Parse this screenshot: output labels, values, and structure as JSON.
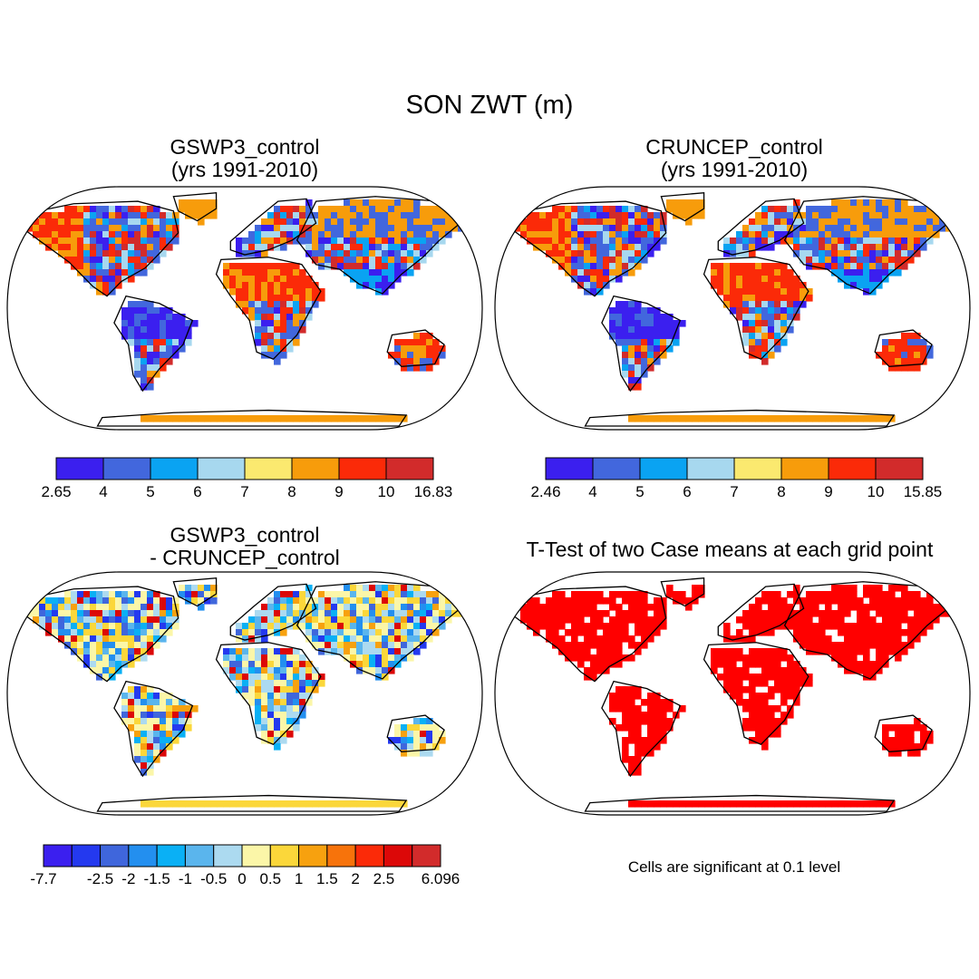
{
  "figure": {
    "title": "SON ZWT (m)"
  },
  "panels": [
    {
      "title": "GSWP3_control\n(yrs 1991-2010)",
      "colorbar": {
        "labels": [
          "2.65",
          "4",
          "5",
          "6",
          "7",
          "8",
          "9",
          "10",
          "16.83"
        ],
        "colors": [
          "#3b1fef",
          "#4267dd",
          "#0aa3f2",
          "#a7d8ef",
          "#fbe96f",
          "#f79c0b",
          "#fb2a08",
          "#d22b2b"
        ]
      }
    },
    {
      "title": "CRUNCEP_control\n(yrs 1991-2010)",
      "colorbar": {
        "labels": [
          "2.46",
          "4",
          "5",
          "6",
          "7",
          "8",
          "9",
          "10",
          "15.85"
        ],
        "colors": [
          "#3b1fef",
          "#4267dd",
          "#0aa3f2",
          "#a7d8ef",
          "#fbe96f",
          "#f79c0b",
          "#fb2a08",
          "#d22b2b"
        ]
      }
    },
    {
      "title": "GSWP3_control\n- CRUNCEP_control",
      "colorbar": {
        "labels": [
          "-7.7",
          "",
          "-2.5",
          "-2",
          "-1.5",
          "-1",
          "-0.5",
          "0",
          "0.5",
          "1",
          "1.5",
          "2",
          "2.5",
          "",
          "6.096"
        ],
        "colors": [
          "#3b1fef",
          "#2439ef",
          "#3f66dc",
          "#238fef",
          "#0ab0f5",
          "#5ab5ed",
          "#acdaf0",
          "#fbf6a8",
          "#fbd73a",
          "#f7a10f",
          "#f7730b",
          "#fb2a08",
          "#dc0808",
          "#d22b2b"
        ]
      }
    },
    {
      "title": "T-Test of two Case means at each grid point",
      "note": "Cells are significant at 0.1 level",
      "significance_color": "#ff0000"
    }
  ]
}
